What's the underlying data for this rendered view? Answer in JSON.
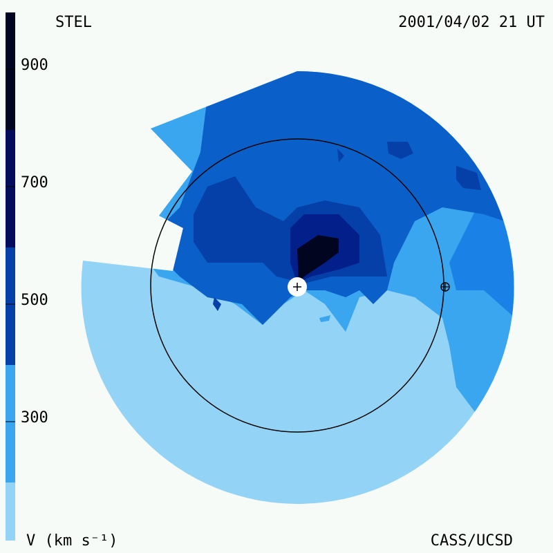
{
  "header": {
    "left": "STEL",
    "right": "2001/04/02 21 UT"
  },
  "footer": {
    "left": "V (km s⁻¹)",
    "right": "CASS/UCSD"
  },
  "colorbar": {
    "ticks": [
      "900",
      "700",
      "500",
      "300"
    ],
    "colors": [
      "#93d3f5",
      "#3aa6f0",
      "#1a82e6",
      "#0a60c8",
      "#0540a8",
      "#031f8a",
      "#020b5c",
      "#020520"
    ]
  },
  "markers": {
    "sun": "plus-icon",
    "earth": "earth-symbol-icon"
  }
}
